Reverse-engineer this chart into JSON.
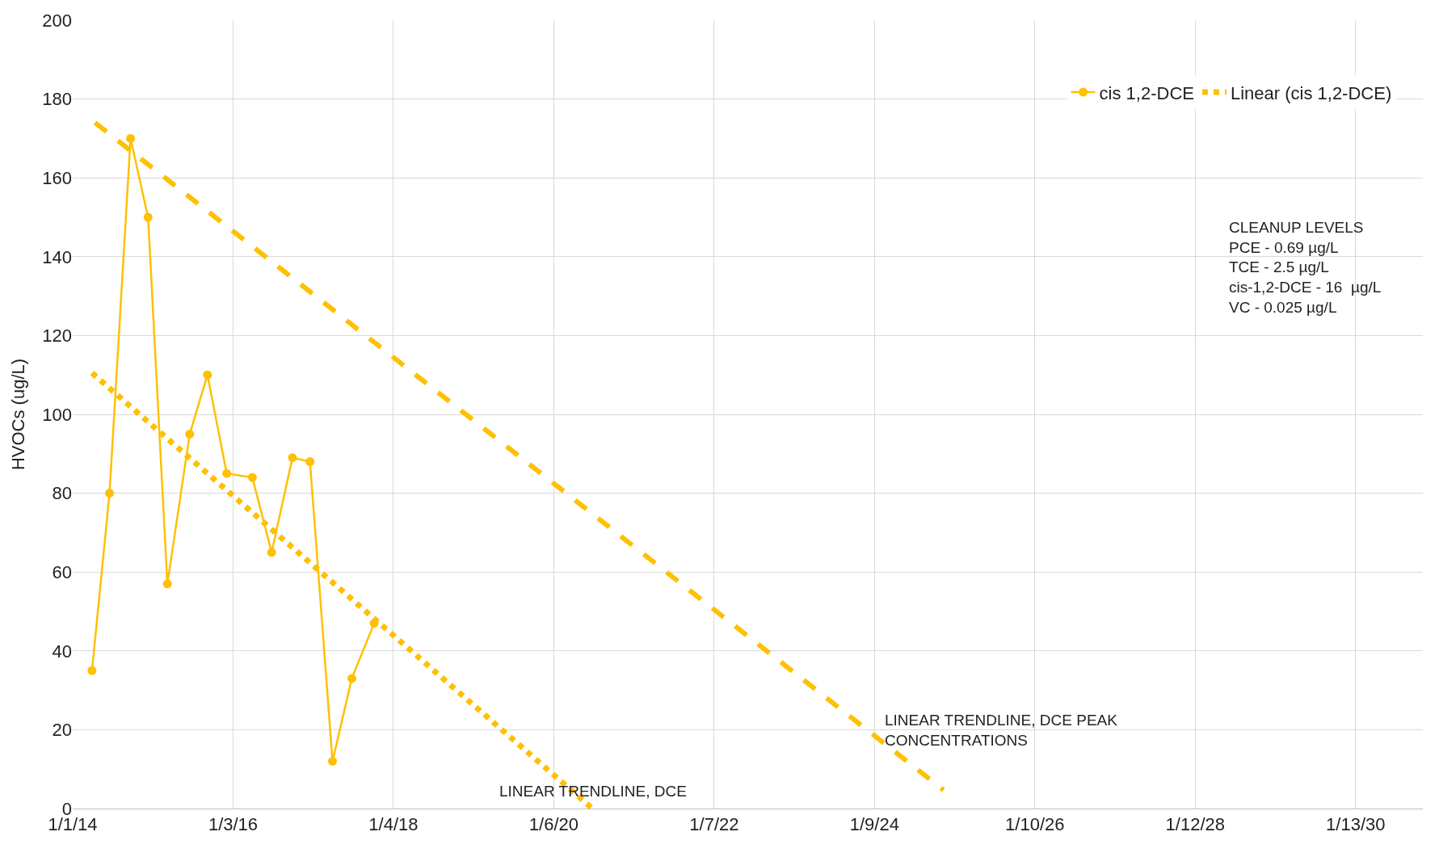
{
  "chart_data": {
    "type": "line",
    "ylabel": "HVOCs (ug/L)",
    "xlim": [
      "2014-01-01",
      "2030-11-16"
    ],
    "xticks": [
      {
        "value": "2014-01-01",
        "label": "1/1/14"
      },
      {
        "value": "2016-01-03",
        "label": "1/3/16"
      },
      {
        "value": "2018-01-04",
        "label": "1/4/18"
      },
      {
        "value": "2020-01-06",
        "label": "1/6/20"
      },
      {
        "value": "2022-01-07",
        "label": "1/7/22"
      },
      {
        "value": "2024-01-09",
        "label": "1/9/24"
      },
      {
        "value": "2026-01-10",
        "label": "1/10/26"
      },
      {
        "value": "2028-01-12",
        "label": "1/12/28"
      },
      {
        "value": "2030-01-13",
        "label": "1/13/30"
      }
    ],
    "ylim": [
      0,
      200
    ],
    "yticks": [
      0,
      20,
      40,
      60,
      80,
      100,
      120,
      140,
      160,
      180,
      200
    ],
    "grid": true,
    "legend": "top right",
    "series": [
      {
        "name": "cis 1,2-DCE",
        "color": "#ffc000",
        "marker": "circle",
        "line_style": "solid",
        "x": [
          "2014-03-30",
          "2014-06-18",
          "2014-09-22",
          "2014-12-11",
          "2015-03-09",
          "2015-06-19",
          "2015-09-08",
          "2015-12-05",
          "2016-03-31",
          "2016-06-27",
          "2016-09-30",
          "2016-12-19",
          "2017-04-01",
          "2017-06-28",
          "2017-10-08"
        ],
        "values": [
          35,
          80,
          170,
          150,
          57,
          95,
          110,
          85,
          84,
          65,
          89,
          88,
          12,
          33,
          47
        ]
      },
      {
        "name": "Linear (cis 1,2-DCE)",
        "color": "#ffc000",
        "marker": "none",
        "line_style": "dotted",
        "x": [
          "2014-03-30",
          "2020-06-30"
        ],
        "values": [
          110.5,
          0
        ]
      },
      {
        "color": "#ffc000",
        "marker": "none",
        "line_style": "dashed",
        "x": [
          "2014-04-13",
          "2024-11-19"
        ],
        "values": [
          174,
          4.7
        ]
      }
    ],
    "annotations": [
      "LINEAR TRENDLINE, DCE",
      "LINEAR TRENDLINE, DCE PEAK\nCONCENTRATIONS",
      "CLEANUP LEVELS\nPCE - 0.69 µg/L\nTCE - 2.5 µg/L\ncis-1,2-DCE - 16  µg/L\nVC - 0.025 µg/L"
    ]
  }
}
